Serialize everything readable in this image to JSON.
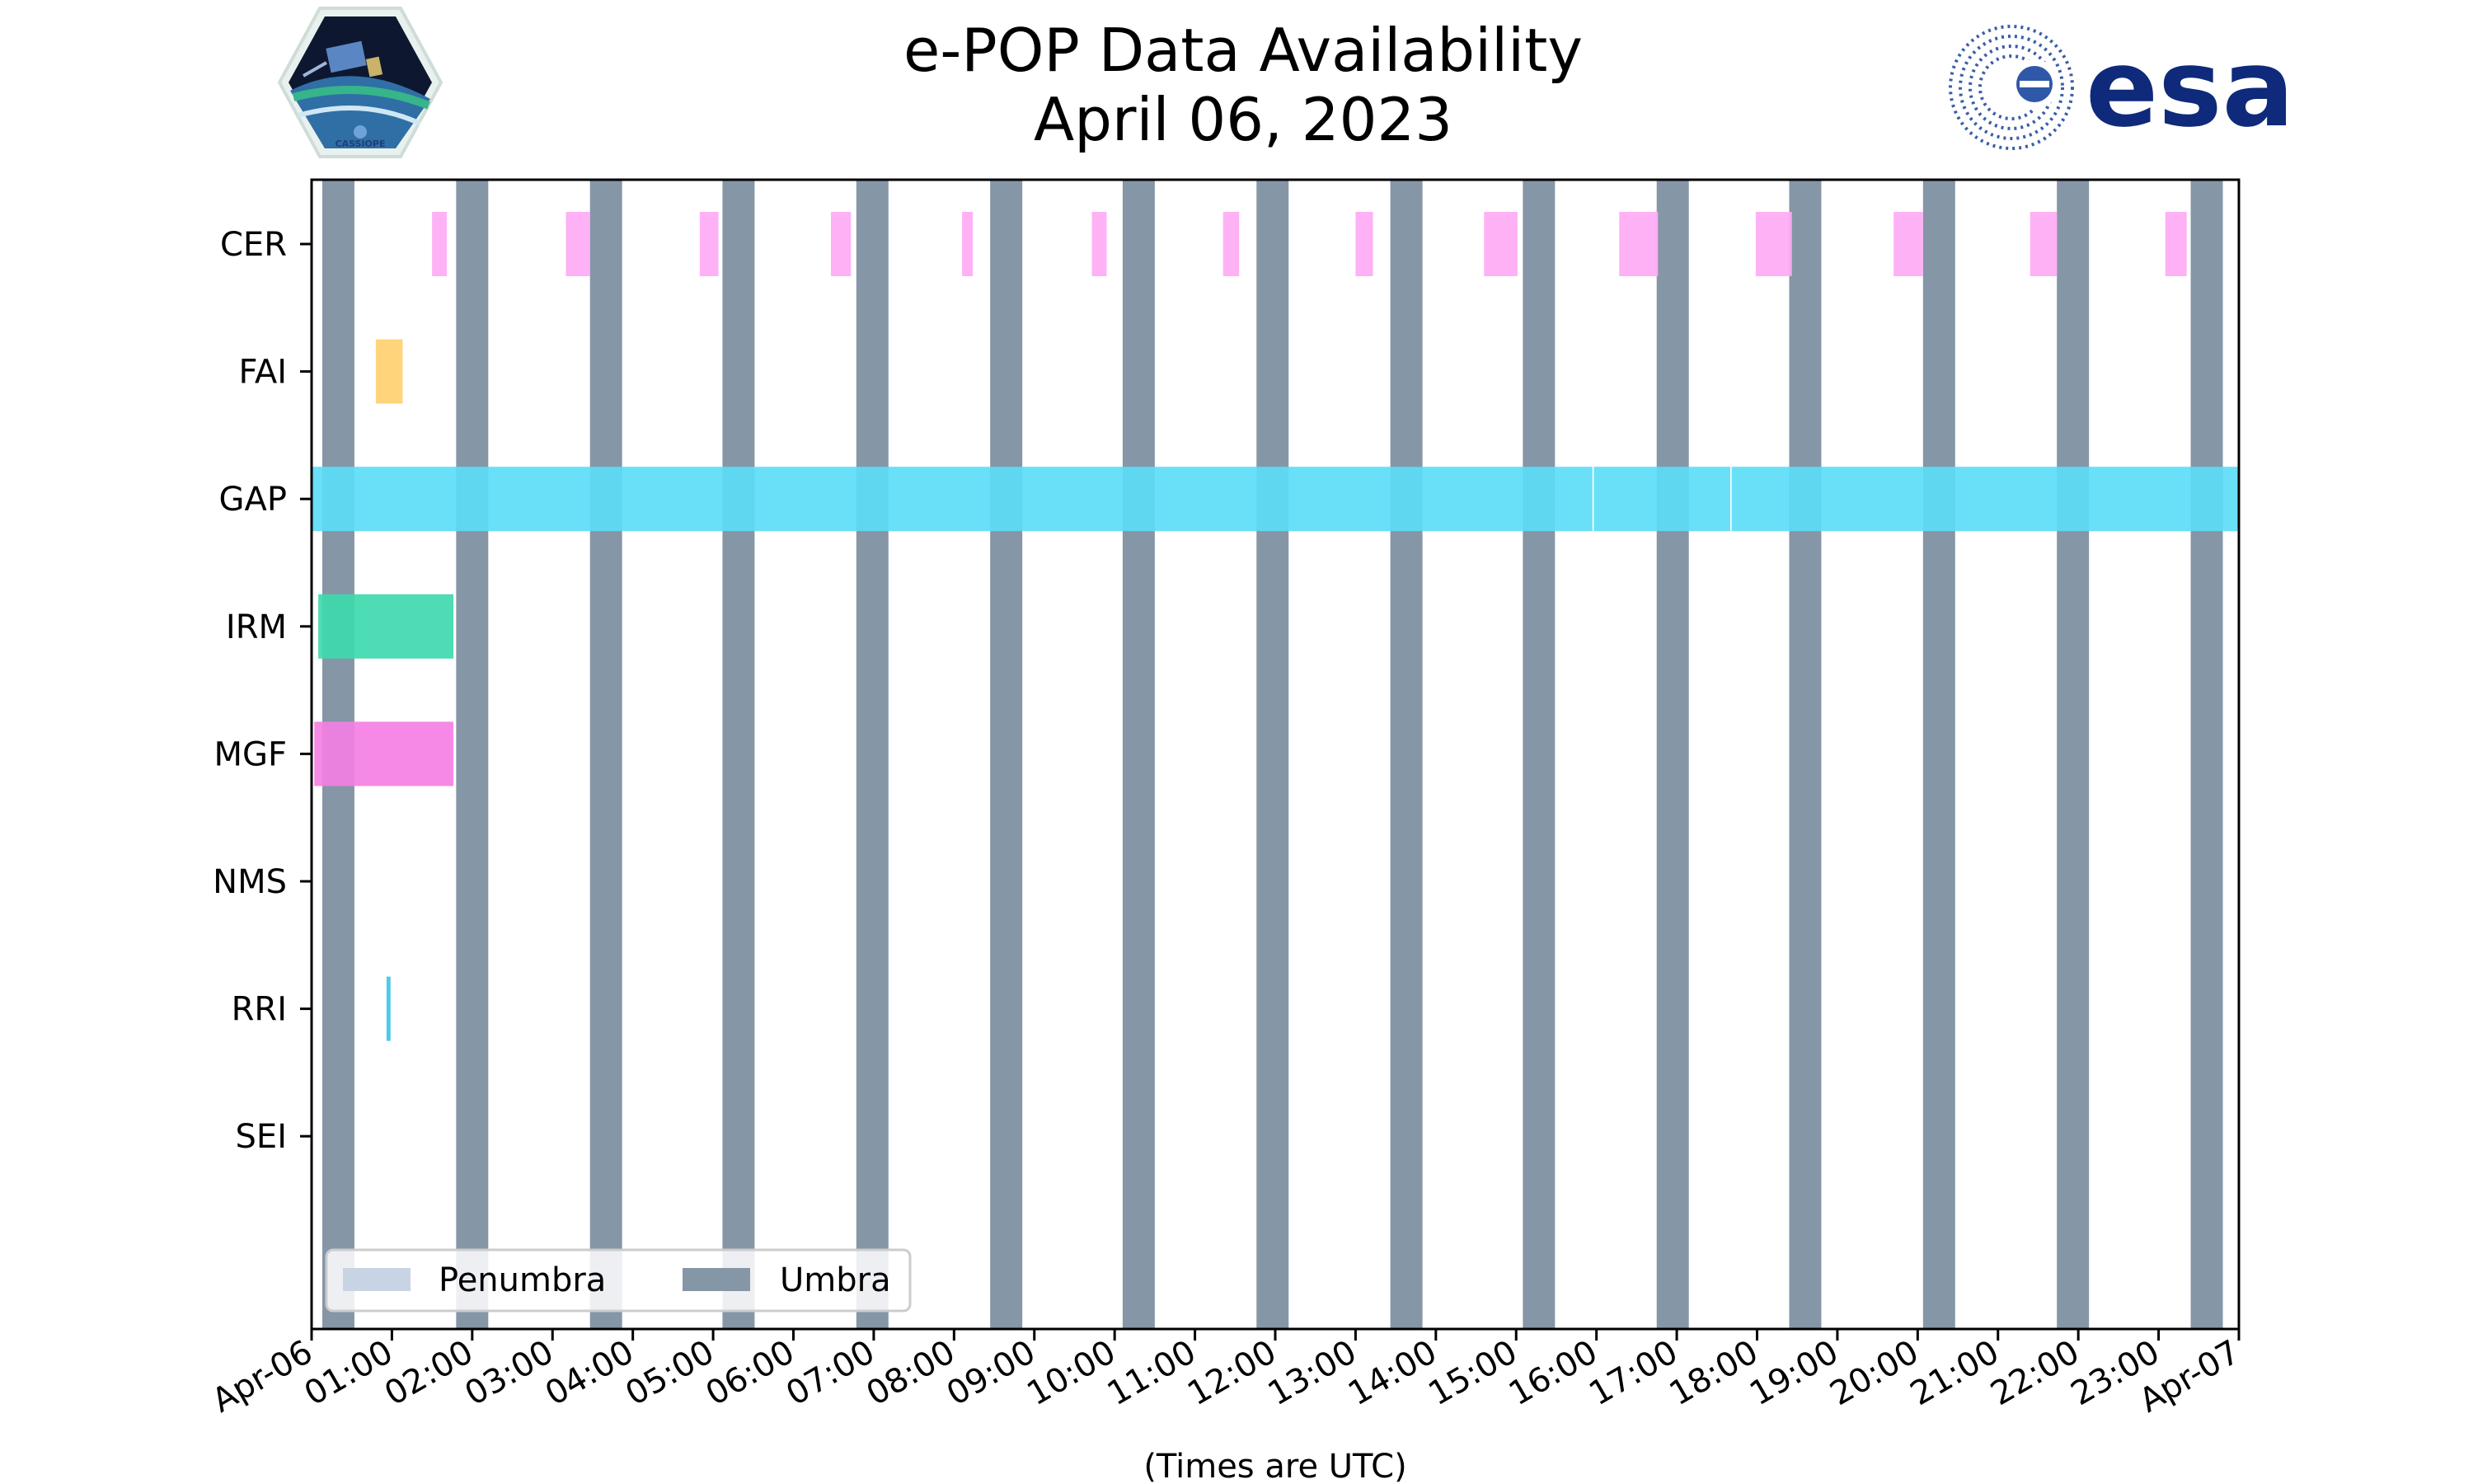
{
  "header": {
    "title_line1": "e-POP Data Availability",
    "title_line2": "April 06, 2023"
  },
  "logos": {
    "left": {
      "name": "cassiope-mission-logo",
      "text": "CASSIOPE"
    },
    "right": {
      "name": "esa-logo",
      "text": "esa",
      "color": "#0f2a7a"
    }
  },
  "chart_data": {
    "type": "timeline",
    "title": "e-POP Data Availability April 06, 2023",
    "xlabel": "(Times are UTC)",
    "x_range": [
      "2023-04-06T00:00",
      "2023-04-07T00:00"
    ],
    "x_ticks": [
      "Apr-06",
      "01:00",
      "02:00",
      "03:00",
      "04:00",
      "05:00",
      "06:00",
      "07:00",
      "08:00",
      "09:00",
      "10:00",
      "11:00",
      "12:00",
      "13:00",
      "14:00",
      "15:00",
      "16:00",
      "17:00",
      "18:00",
      "19:00",
      "20:00",
      "21:00",
      "22:00",
      "23:00",
      "Apr-07"
    ],
    "instruments": [
      {
        "name": "CER",
        "color": "#ffaaf4",
        "intervals": [
          [
            "01:30",
            "01:41"
          ],
          [
            "03:10",
            "03:28"
          ],
          [
            "04:50",
            "05:04"
          ],
          [
            "06:28",
            "06:43"
          ],
          [
            "08:06",
            "08:14"
          ],
          [
            "09:43",
            "09:54"
          ],
          [
            "11:21",
            "11:33"
          ],
          [
            "13:00",
            "13:13"
          ],
          [
            "14:36",
            "15:01"
          ],
          [
            "16:17",
            "16:46"
          ],
          [
            "17:59",
            "18:26"
          ],
          [
            "19:42",
            "20:04"
          ],
          [
            "21:24",
            "21:44"
          ],
          [
            "23:05",
            "23:21"
          ]
        ]
      },
      {
        "name": "FAI",
        "color": "#ffd070",
        "intervals": [
          [
            "00:48",
            "01:08"
          ]
        ]
      },
      {
        "name": "GAP",
        "color": "#5cdcf7",
        "intervals": [
          [
            "00:00",
            "15:57"
          ],
          [
            "15:58",
            "17:40"
          ],
          [
            "17:41",
            "24:00"
          ]
        ]
      },
      {
        "name": "IRM",
        "color": "#3ed9ac",
        "intervals": [
          [
            "00:05",
            "01:46"
          ]
        ]
      },
      {
        "name": "MGF",
        "color": "#f47fe3",
        "intervals": [
          [
            "00:02",
            "01:46"
          ]
        ]
      },
      {
        "name": "NMS",
        "color": "#888888",
        "intervals": []
      },
      {
        "name": "RRI",
        "color": "#3ec6e6",
        "intervals": [
          [
            "00:56",
            "00:59"
          ]
        ]
      },
      {
        "name": "SEI",
        "color": "#888888",
        "intervals": []
      }
    ],
    "umbra": {
      "color": "#8596a7",
      "intervals": [
        [
          "00:08",
          "00:32"
        ],
        [
          "01:48",
          "02:12"
        ],
        [
          "03:28",
          "03:52"
        ],
        [
          "05:07",
          "05:31"
        ],
        [
          "06:47",
          "07:11"
        ],
        [
          "08:27",
          "08:51"
        ],
        [
          "10:06",
          "10:30"
        ],
        [
          "11:46",
          "12:10"
        ],
        [
          "13:26",
          "13:50"
        ],
        [
          "15:05",
          "15:29"
        ],
        [
          "16:45",
          "17:09"
        ],
        [
          "18:24",
          "18:48"
        ],
        [
          "20:04",
          "20:28"
        ],
        [
          "21:44",
          "22:08"
        ],
        [
          "23:24",
          "23:48"
        ]
      ]
    },
    "penumbra": {
      "color": "#c8d4e3",
      "intervals": []
    },
    "legend": {
      "position": "lower-left",
      "entries": [
        {
          "label": "Penumbra",
          "color": "#c8d4e3"
        },
        {
          "label": "Umbra",
          "color": "#8596a7"
        }
      ]
    },
    "grid": false
  }
}
